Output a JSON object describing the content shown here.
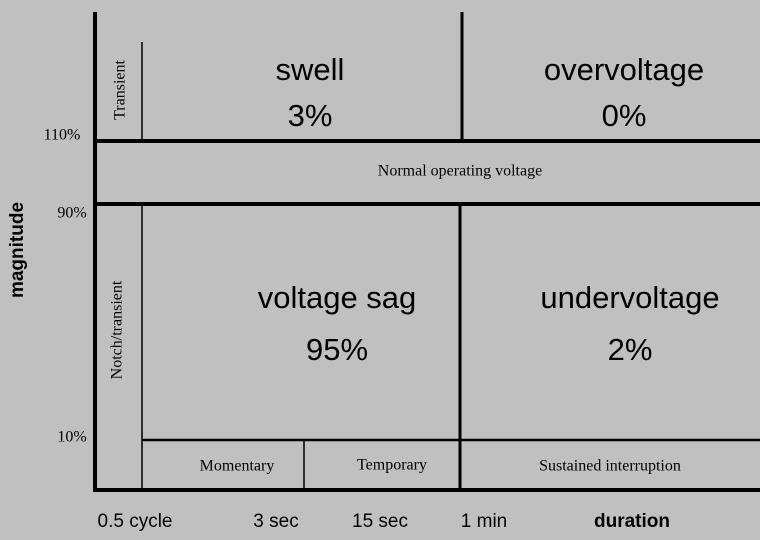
{
  "axes": {
    "y_label": "magnitude",
    "x_label": "duration",
    "y_ticks": [
      "110%",
      "90%",
      "10%"
    ],
    "x_ticks": [
      "0.5 cycle",
      "3 sec",
      "15 sec",
      "1 min"
    ]
  },
  "regions": [
    {
      "name": "swell",
      "share": "3%"
    },
    {
      "name": "overvoltage",
      "share": "0%"
    },
    {
      "name": "voltage sag",
      "share": "95%"
    },
    {
      "name": "undervoltage",
      "share": "2%"
    }
  ],
  "bands": {
    "normal": "Normal operating voltage",
    "transient": "Transient",
    "notch": "Notch/transient"
  },
  "interruptions": [
    "Momentary",
    "Temporary",
    "Sustained interruption"
  ]
}
